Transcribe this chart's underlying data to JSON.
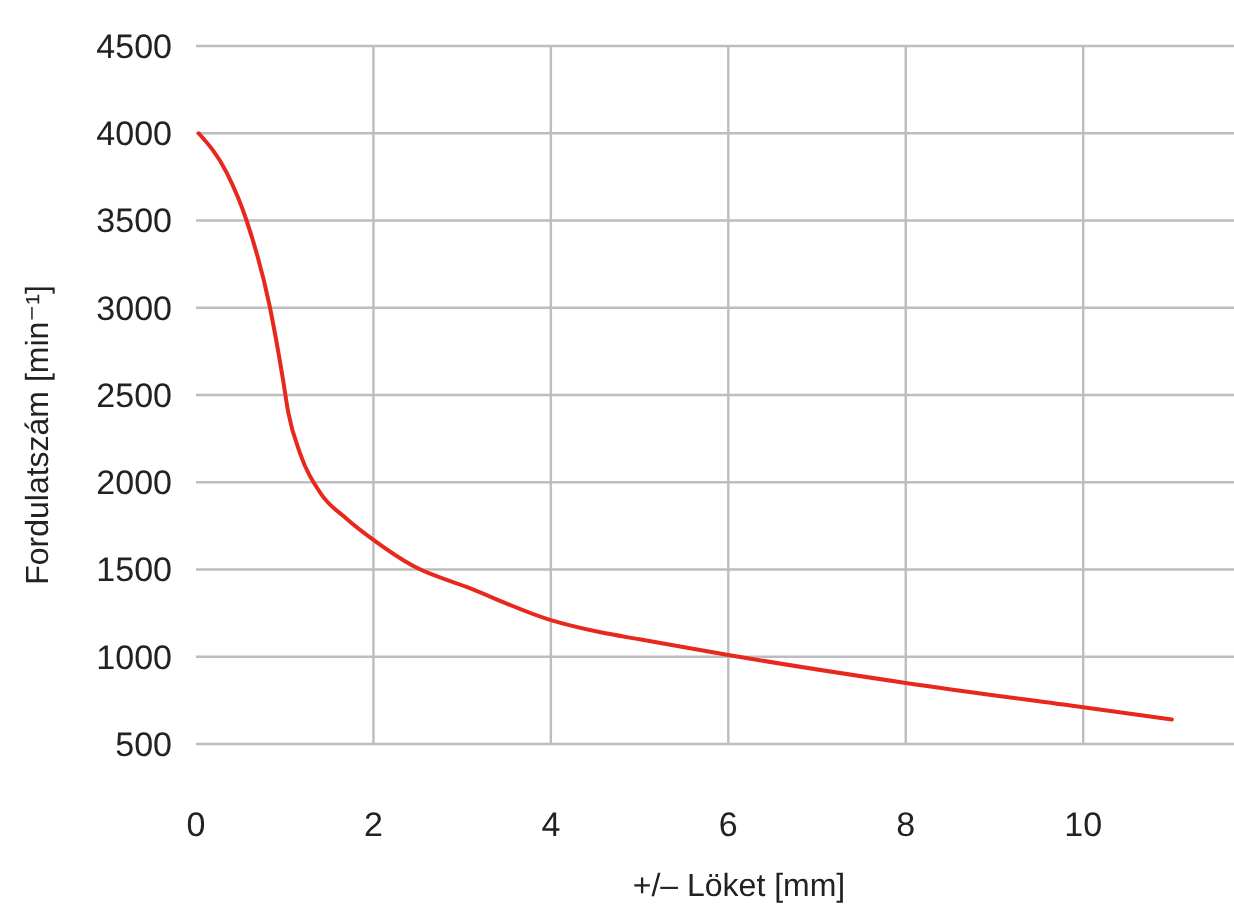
{
  "chart_data": {
    "type": "line",
    "xlabel": "+/– Löket [mm]",
    "ylabel": "Fordulatszám [min⁻¹]",
    "xlim": [
      0,
      11.7
    ],
    "ylim": [
      500,
      4500
    ],
    "xticks": [
      0,
      2,
      4,
      6,
      8,
      10
    ],
    "yticks": [
      500,
      1000,
      1500,
      2000,
      2500,
      3000,
      3500,
      4000,
      4500
    ],
    "grid": true,
    "series": [
      {
        "color": "#e8281c",
        "x": [
          0.03,
          0.35,
          0.57,
          0.83,
          0.98,
          1.04,
          1.17,
          1.4,
          1.7,
          2.0,
          2.45,
          3.05,
          4.0,
          4.56,
          5.0,
          6.0,
          8.0,
          10.0,
          11.0
        ],
        "values": [
          4000,
          3770,
          3500,
          3010,
          2590,
          2400,
          2170,
          1940,
          1790,
          1670,
          1520,
          1400,
          1210,
          1140,
          1100,
          1010,
          850,
          710,
          640
        ]
      }
    ]
  }
}
